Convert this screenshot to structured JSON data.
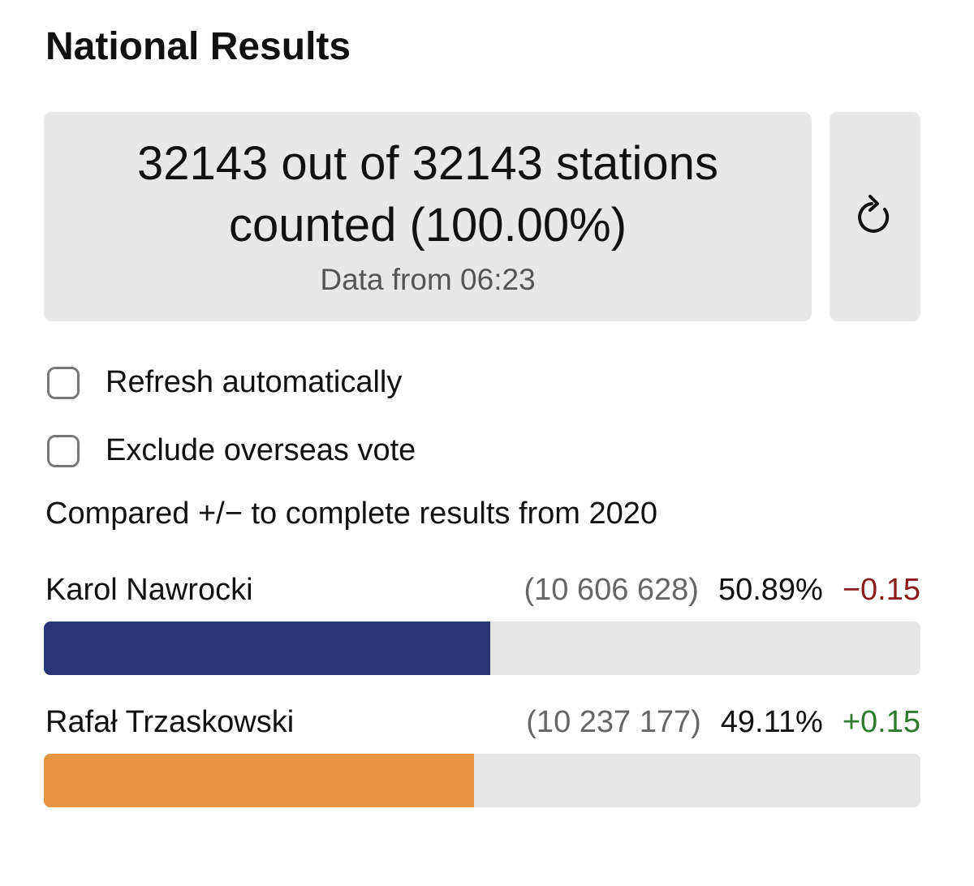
{
  "header": {
    "title": "National Results"
  },
  "status": {
    "counted": "32143 out of 32143 stations counted (100.00%)",
    "updated": "Data from 06:23"
  },
  "options": [
    "Refresh automatically",
    "Exclude overseas vote"
  ],
  "comparison_note": "Compared +/− to complete results from 2020",
  "bars": {
    "xlim": [
      0,
      100
    ]
  },
  "candidates": [
    {
      "name": "Karol Nawrocki",
      "votes": "(10 606 628)",
      "percent": 50.89,
      "percent_label": "50.89%",
      "change": "−0.15",
      "change_color": "#8b1c1c",
      "color": "#2b3574"
    },
    {
      "name": "Rafał Trzaskowski",
      "votes": "(10 237 177)",
      "percent": 49.11,
      "percent_label": "49.11%",
      "change": "+0.15",
      "change_color": "#2e7a2e",
      "color": "#e69442"
    }
  ]
}
